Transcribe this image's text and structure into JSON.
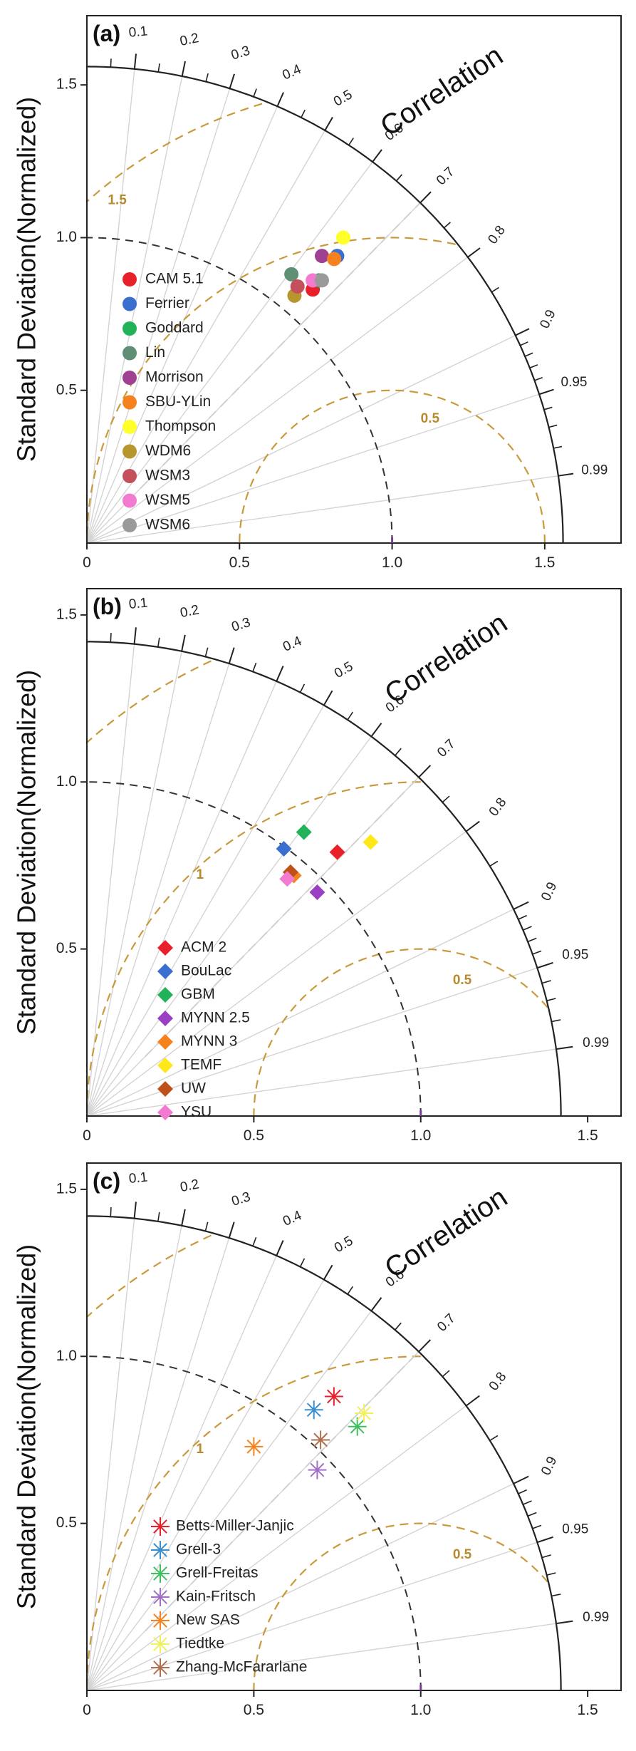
{
  "ylabel": "Standard Deviation(Normalized)",
  "correlation_label": "Correlation",
  "correlation_ticks": [
    "0.1",
    "0.2",
    "0.3",
    "0.4",
    "0.5",
    "0.6",
    "0.7",
    "0.8",
    "0.9",
    "0.95",
    "0.99"
  ],
  "chart_data": [
    {
      "type": "scatter",
      "panel_label": "(a)",
      "axis_max": 1.75,
      "outer_arc": 1.56,
      "x_ticks": [
        "0",
        "0.5",
        "1.0",
        "1.5"
      ],
      "y_ticks": [
        "0.5",
        "1.0",
        "1.5"
      ],
      "rms_labels": [
        {
          "text": "1.5",
          "value": 1.5
        },
        {
          "text": "0.5",
          "value": 0.5
        }
      ],
      "marker": "circle",
      "series": [
        {
          "name": "CAM 5.1",
          "color": "#e8202a",
          "x": 0.74,
          "y": 0.83
        },
        {
          "name": "Ferrier",
          "color": "#3a6fd0",
          "x": 0.82,
          "y": 0.94
        },
        {
          "name": "Goddard",
          "color": "#22b35a",
          "x": 0.76,
          "y": 0.86
        },
        {
          "name": "Lin",
          "color": "#5f8f74",
          "x": 0.67,
          "y": 0.88
        },
        {
          "name": "Morrison",
          "color": "#a04090",
          "x": 0.77,
          "y": 0.94
        },
        {
          "name": "SBU-YLin",
          "color": "#f5821f",
          "x": 0.81,
          "y": 0.93
        },
        {
          "name": "Thompson",
          "color": "#ffff2a",
          "x": 0.84,
          "y": 1.0
        },
        {
          "name": "WDM6",
          "color": "#b8962e",
          "x": 0.68,
          "y": 0.81
        },
        {
          "name": "WSM3",
          "color": "#c4505c",
          "x": 0.69,
          "y": 0.84
        },
        {
          "name": "WSM5",
          "color": "#f27bd0",
          "x": 0.74,
          "y": 0.86
        },
        {
          "name": "WSM6",
          "color": "#9a9a9a",
          "x": 0.77,
          "y": 0.86
        }
      ]
    },
    {
      "type": "scatter",
      "panel_label": "(b)",
      "axis_max": 1.6,
      "outer_arc": 1.42,
      "x_ticks": [
        "0",
        "0.5",
        "1.0",
        "1.5"
      ],
      "y_ticks": [
        "0.5",
        "1.0",
        "1.5"
      ],
      "rms_labels": [
        {
          "text": "1",
          "value": 1.0
        },
        {
          "text": "0.5",
          "value": 0.5
        }
      ],
      "marker": "diamond",
      "series": [
        {
          "name": "ACM 2",
          "color": "#e8202a",
          "x": 0.75,
          "y": 0.79
        },
        {
          "name": "BouLac",
          "color": "#3a6fd0",
          "x": 0.59,
          "y": 0.8
        },
        {
          "name": "GBM",
          "color": "#22b35a",
          "x": 0.65,
          "y": 0.85
        },
        {
          "name": "MYNN 2.5",
          "color": "#9a3fc4",
          "x": 0.69,
          "y": 0.67
        },
        {
          "name": "MYNN 3",
          "color": "#f5821f",
          "x": 0.62,
          "y": 0.72
        },
        {
          "name": "TEMF",
          "color": "#ffe81a",
          "x": 0.85,
          "y": 0.82
        },
        {
          "name": "UW",
          "color": "#c0501a",
          "x": 0.61,
          "y": 0.73
        },
        {
          "name": "YSU",
          "color": "#f27bd0",
          "x": 0.6,
          "y": 0.71
        }
      ]
    },
    {
      "type": "scatter",
      "panel_label": "(c)",
      "axis_max": 1.6,
      "outer_arc": 1.42,
      "x_ticks": [
        "0",
        "0.5",
        "1.0",
        "1.5"
      ],
      "y_ticks": [
        "0.5",
        "1.0",
        "1.5"
      ],
      "rms_labels": [
        {
          "text": "1",
          "value": 1.0
        },
        {
          "text": "0.5",
          "value": 0.5
        }
      ],
      "marker": "asterisk",
      "series": [
        {
          "name": "Betts-Miller-Janjic",
          "color": "#e8202a",
          "x": 0.74,
          "y": 0.88
        },
        {
          "name": "Grell-3",
          "color": "#3a8fd0",
          "x": 0.68,
          "y": 0.84
        },
        {
          "name": "Grell-Freitas",
          "color": "#3fbf5f",
          "x": 0.81,
          "y": 0.79
        },
        {
          "name": "Kain-Fritsch",
          "color": "#a070c8",
          "x": 0.69,
          "y": 0.66
        },
        {
          "name": "New SAS",
          "color": "#f5821f",
          "x": 0.5,
          "y": 0.73
        },
        {
          "name": "Tiedtke",
          "color": "#f0f060",
          "x": 0.83,
          "y": 0.83
        },
        {
          "name": "Zhang-McFararlane",
          "color": "#b07050",
          "x": 0.7,
          "y": 0.75
        }
      ]
    }
  ]
}
